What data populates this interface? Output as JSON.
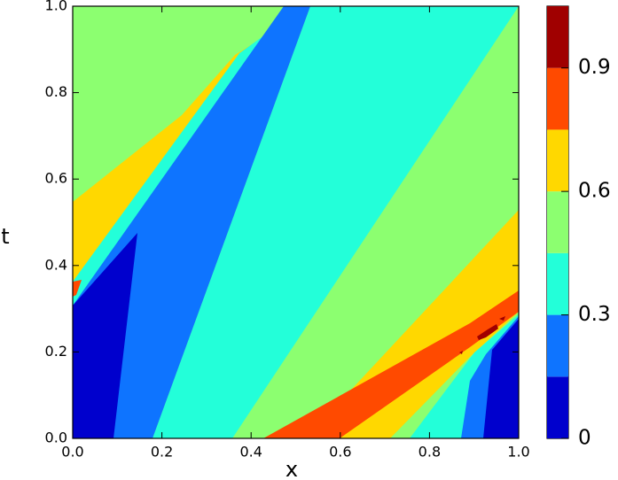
{
  "chart_data": {
    "type": "contour",
    "xlabel": "x",
    "ylabel": "t",
    "xlim": [
      0,
      1
    ],
    "ylim": [
      0,
      1
    ],
    "xticks": [
      {
        "value": 0,
        "label": "0.0"
      },
      0.2,
      0.4,
      0.6,
      0.8,
      {
        "value": 1,
        "label": "1.0"
      }
    ],
    "yticks": [
      {
        "value": 0,
        "label": "0.0"
      },
      0.2,
      0.4,
      0.6,
      0.8,
      {
        "value": 1,
        "label": "1.0"
      }
    ],
    "colorbar": {
      "levels": [
        0,
        0.15,
        0.3,
        0.45,
        0.6,
        0.75,
        0.9,
        1.05
      ],
      "colors": [
        "#0000cd",
        "#0e74ff",
        "#23ffd9",
        "#8cff70",
        "#ffd800",
        "#ff4a00",
        "#a00000"
      ],
      "ticks": [
        0,
        0.3,
        0.6,
        0.9
      ]
    }
  }
}
